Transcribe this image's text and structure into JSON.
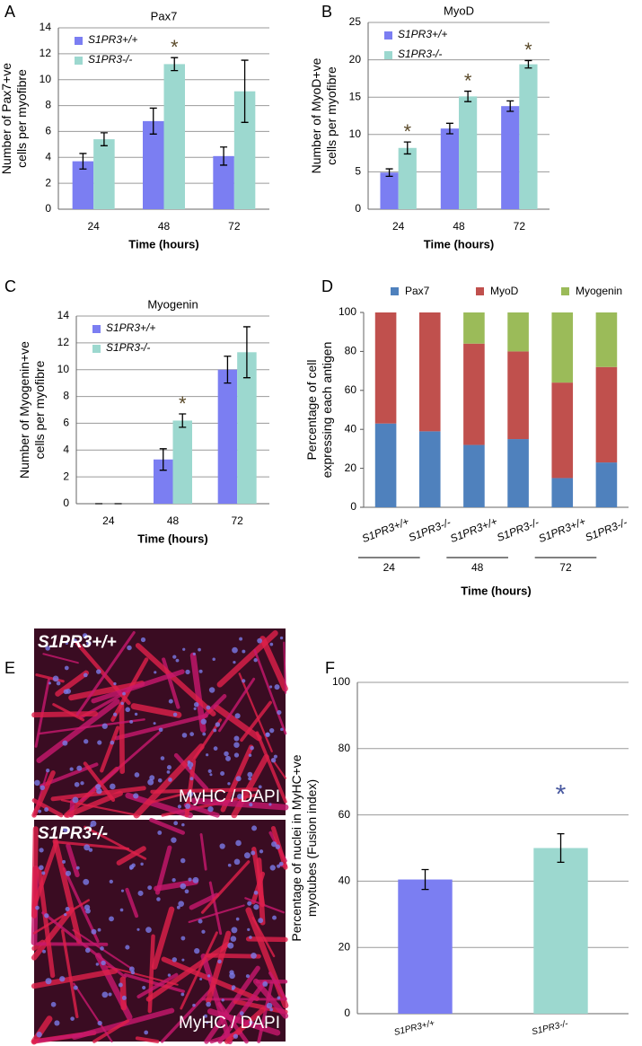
{
  "chart_data": [
    {
      "type": "bar",
      "panel": "A",
      "title": "Pax7",
      "ylabel": [
        "Number of Pax7+ve",
        "cells per myofibre"
      ],
      "xlabel": "Time (hours)",
      "categories": [
        "24",
        "48",
        "72"
      ],
      "series": [
        {
          "name": "S1PR3+/+",
          "color": "#7b7ef2",
          "values": [
            3.7,
            6.8,
            4.1
          ],
          "errors": [
            0.6,
            1.0,
            0.7
          ],
          "markers": [
            null,
            null,
            null
          ]
        },
        {
          "name": "S1PR3-/-",
          "color": "#9cd8cf",
          "values": [
            5.4,
            11.2,
            9.1
          ],
          "errors": [
            0.5,
            0.5,
            2.4
          ],
          "markers": [
            null,
            "*",
            null
          ]
        }
      ],
      "ylim": [
        0,
        14
      ],
      "yticks": [
        0,
        2,
        4,
        6,
        8,
        10,
        12,
        14
      ],
      "grid": true,
      "legend": "upper left"
    },
    {
      "type": "bar",
      "panel": "B",
      "title": "MyoD",
      "ylabel": [
        "Number of MyoD+ve",
        "cells per myofibre"
      ],
      "xlabel": "Time (hours)",
      "categories": [
        "24",
        "48",
        "72"
      ],
      "series": [
        {
          "name": "S1PR3+/+",
          "color": "#7b7ef2",
          "values": [
            4.9,
            10.8,
            13.8
          ],
          "errors": [
            0.5,
            0.7,
            0.7
          ],
          "markers": [
            null,
            null,
            null
          ]
        },
        {
          "name": "S1PR3-/-",
          "color": "#9cd8cf",
          "values": [
            8.2,
            15.1,
            19.4
          ],
          "errors": [
            0.8,
            0.7,
            0.5
          ],
          "markers": [
            "*",
            "*",
            "*"
          ]
        }
      ],
      "ylim": [
        0,
        25
      ],
      "yticks": [
        0,
        5,
        10,
        15,
        20,
        25
      ],
      "grid": true,
      "legend": "upper left"
    },
    {
      "type": "bar",
      "panel": "C",
      "title": "Myogenin",
      "ylabel": [
        "Number of Myogenin+ve",
        "cells per myofibre"
      ],
      "xlabel": "Time (hours)",
      "categories": [
        "24",
        "48",
        "72"
      ],
      "series": [
        {
          "name": "S1PR3+/+",
          "color": "#7b7ef2",
          "values": [
            0,
            3.3,
            10.0
          ],
          "errors": [
            0,
            0.8,
            1.0
          ],
          "markers": [
            null,
            null,
            null
          ]
        },
        {
          "name": "S1PR3-/-",
          "color": "#9cd8cf",
          "values": [
            0,
            6.2,
            11.3
          ],
          "errors": [
            0,
            0.5,
            1.9
          ],
          "markers": [
            null,
            "*",
            null
          ]
        }
      ],
      "ylim": [
        0,
        14
      ],
      "yticks": [
        0,
        2,
        4,
        6,
        8,
        10,
        12,
        14
      ],
      "grid": true,
      "legend": "upper left"
    },
    {
      "type": "stacked_bar",
      "panel": "D",
      "ylabel": [
        "Percentage of cell",
        "expressing each antigen"
      ],
      "xlabel": "Time (hours)",
      "categories": [
        "S1PR3+/+",
        "S1PR3-/-",
        "S1PR3+/+",
        "S1PR3-/-",
        "S1PR3+/+",
        "S1PR3-/-"
      ],
      "groups": [
        "24",
        "48",
        "72"
      ],
      "series": [
        {
          "name": "Pax7",
          "color": "#4f81bd",
          "values": [
            43,
            39,
            32,
            35,
            15,
            23
          ]
        },
        {
          "name": "MyoD",
          "color": "#c0504d",
          "values": [
            57,
            61,
            52,
            45,
            49,
            49
          ]
        },
        {
          "name": "Myogenin",
          "color": "#9bbb59",
          "values": [
            0,
            0,
            16,
            20,
            36,
            28
          ]
        }
      ],
      "ylim": [
        0,
        100
      ],
      "yticks": [
        0,
        20,
        40,
        60,
        80,
        100
      ],
      "grid": false,
      "legend": "top"
    },
    {
      "type": "single_bar",
      "panel": "F",
      "ylabel": [
        "Percentage of nuclei in MyHC+ve",
        "myotubes (Fusion index)"
      ],
      "categories": [
        "S1PR3+/+",
        "S1PR3-/-"
      ],
      "values": [
        40.5,
        50
      ],
      "errors": [
        3,
        4.3
      ],
      "colors": [
        "#7b7ef2",
        "#9cd8cf"
      ],
      "markers": [
        null,
        "*"
      ],
      "ylim": [
        0,
        100
      ],
      "yticks": [
        0,
        20,
        40,
        60,
        80,
        100
      ],
      "grid": true
    }
  ],
  "image_panel": {
    "panel": "E",
    "images": [
      {
        "label": "S1PR3+/+",
        "stain": "MyHC / DAPI"
      },
      {
        "label": "S1PR3-/-",
        "stain": "MyHC / DAPI"
      }
    ]
  }
}
